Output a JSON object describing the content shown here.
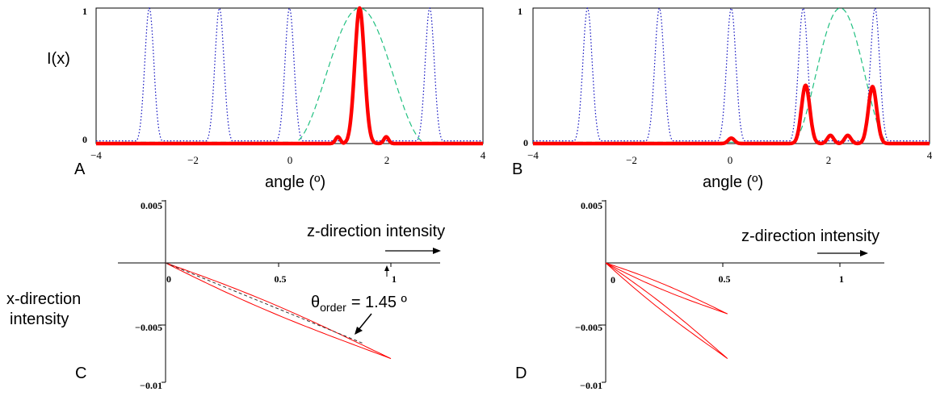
{
  "chart_data": [
    {
      "panel": "A",
      "type": "line",
      "ylabel": "I(x)",
      "xlabel": "angle (º)",
      "xlim": [
        -4,
        4
      ],
      "ylim": [
        0,
        1
      ],
      "xticks": [
        "−4",
        "−2",
        "0",
        "2",
        "4"
      ],
      "yticks": [
        "0",
        "1"
      ],
      "series": [
        {
          "style": "dotted",
          "color": "#1010c0",
          "peaks": [
            -2.9,
            -1.45,
            0,
            1.45,
            2.9
          ],
          "peak_height": 1.0,
          "peak_width": 0.22
        },
        {
          "style": "dashed",
          "color": "#20c080",
          "center": 1.45,
          "height": 1.0,
          "halfwidth": 1.4
        },
        {
          "style": "solid",
          "color": "#ff0000",
          "main_peak": 1.45,
          "height": 1.0,
          "side_peaks": [
            [
              1.0,
              0.05
            ],
            [
              2.0,
              0.05
            ]
          ]
        }
      ]
    },
    {
      "panel": "B",
      "type": "line",
      "xlabel": "angle (º)",
      "xlim": [
        -4,
        4
      ],
      "ylim": [
        0,
        1
      ],
      "xticks": [
        "−4",
        "−2",
        "0",
        "2",
        "4"
      ],
      "yticks": [
        "0",
        "1"
      ],
      "series": [
        {
          "style": "dotted",
          "color": "#1010c0",
          "peaks": [
            -2.9,
            -1.45,
            0,
            1.45,
            2.9
          ],
          "peak_height": 1.0,
          "peak_width": 0.22
        },
        {
          "style": "dashed",
          "color": "#20c080",
          "center": 2.2,
          "height": 1.0,
          "halfwidth": 1.0
        },
        {
          "style": "solid",
          "color": "#ff0000",
          "peaks": [
            [
              0,
              0.04
            ],
            [
              1.5,
              0.43
            ],
            [
              2.0,
              0.06
            ],
            [
              2.35,
              0.06
            ],
            [
              2.85,
              0.42
            ]
          ]
        }
      ]
    },
    {
      "panel": "C",
      "type": "line",
      "title": "z-direction intensity",
      "ylabel": "x-direction intensity",
      "xlim": [
        0,
        1.2
      ],
      "ylim": [
        -0.01,
        0.005
      ],
      "xticks": [
        "0",
        "0.5",
        "1"
      ],
      "yticks": [
        "0.005",
        "−0.005",
        "−0.01"
      ],
      "annotation": "θ",
      "annotation_sub": "order",
      "annotation_value": "= 1.45 º",
      "series": [
        {
          "style": "solid",
          "color": "#ff0000",
          "lobe_tip": [
            1.0,
            -0.0077
          ]
        },
        {
          "style": "dashed",
          "color": "#333333",
          "line_to": [
            0.88,
            -0.0065
          ]
        }
      ]
    },
    {
      "panel": "D",
      "type": "line",
      "title": "z-direction intensity",
      "xlim": [
        0,
        1.2
      ],
      "ylim": [
        -0.01,
        0.005
      ],
      "xticks": [
        "0",
        "0.5",
        "1"
      ],
      "yticks": [
        "0.005",
        "−0.005",
        "−0.01"
      ],
      "series": [
        {
          "style": "solid",
          "color": "#ff0000",
          "lobe_tips": [
            [
              0.52,
              -0.0041
            ],
            [
              0.52,
              -0.0077
            ]
          ]
        }
      ]
    }
  ]
}
